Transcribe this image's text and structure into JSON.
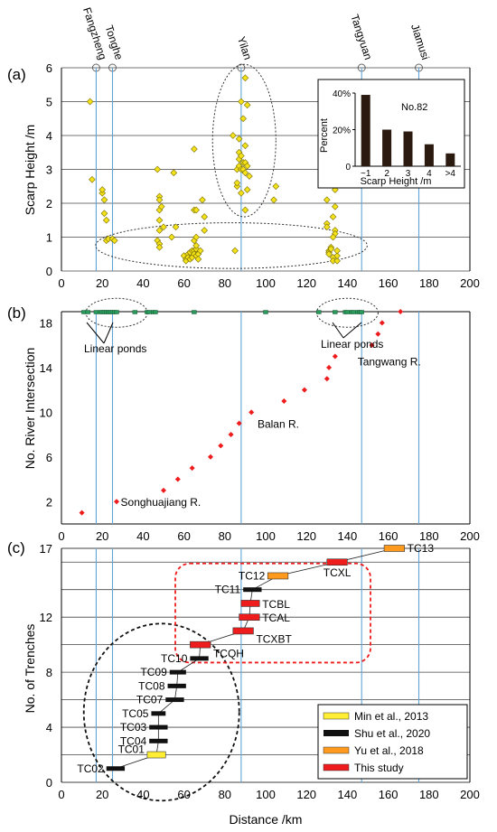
{
  "top_labels": [
    {
      "text": "Fangzheng",
      "x": 17
    },
    {
      "text": "Tonghe",
      "x": 25
    },
    {
      "text": "Yilan",
      "x": 88
    },
    {
      "text": "Tangyuan",
      "x": 147
    },
    {
      "text": "Jiamusi",
      "x": 175
    }
  ],
  "panel_a": {
    "label": "(a)",
    "ylabel": "Scarp Height /m",
    "xlim": [
      0,
      200
    ],
    "ylim": [
      0,
      6
    ],
    "xticks": [
      0,
      20,
      40,
      60,
      80,
      100,
      120,
      140,
      160,
      180,
      200
    ],
    "yticks": [
      0,
      1,
      2,
      3,
      4,
      5,
      6
    ],
    "points": [
      [
        14,
        5
      ],
      [
        15,
        2.7
      ],
      [
        20,
        2.3
      ],
      [
        20,
        2.4
      ],
      [
        21,
        2.1
      ],
      [
        21,
        1.7
      ],
      [
        22,
        1.5
      ],
      [
        22,
        0.9
      ],
      [
        23,
        0.95
      ],
      [
        25,
        0.95
      ],
      [
        26,
        0.9
      ],
      [
        47,
        3
      ],
      [
        48,
        2.2
      ],
      [
        48,
        2.1
      ],
      [
        48,
        1.8
      ],
      [
        48,
        1.5
      ],
      [
        48,
        1.2
      ],
      [
        49,
        1.9
      ],
      [
        47,
        0.9
      ],
      [
        48,
        0.8
      ],
      [
        48,
        0.7
      ],
      [
        50,
        1.3
      ],
      [
        54,
        1
      ],
      [
        55,
        2.9
      ],
      [
        56,
        1.3
      ],
      [
        60,
        0.45
      ],
      [
        61,
        0.35
      ],
      [
        61,
        0.3
      ],
      [
        62,
        0.5
      ],
      [
        62,
        0.4
      ],
      [
        63,
        0.55
      ],
      [
        63,
        0.35
      ],
      [
        64,
        0.6
      ],
      [
        64,
        0.4
      ],
      [
        65,
        0.9
      ],
      [
        65,
        0.6
      ],
      [
        65,
        0.5
      ],
      [
        66,
        0.65
      ],
      [
        66,
        1
      ],
      [
        66,
        0.45
      ],
      [
        66,
        0.75
      ],
      [
        67,
        0.5
      ],
      [
        67,
        0.35
      ],
      [
        68,
        0.6
      ],
      [
        65,
        3.6
      ],
      [
        65,
        1.8
      ],
      [
        66,
        1.8
      ],
      [
        69,
        2.1
      ],
      [
        70,
        1.6
      ],
      [
        70,
        1.2
      ],
      [
        84,
        4
      ],
      [
        85,
        0.6
      ],
      [
        86,
        2.5
      ],
      [
        86,
        2.6
      ],
      [
        86,
        3
      ],
      [
        87,
        3.3
      ],
      [
        87,
        3.1
      ],
      [
        87,
        3.5
      ],
      [
        87,
        3.9
      ],
      [
        88,
        3.4
      ],
      [
        88,
        2.3
      ],
      [
        88,
        3
      ],
      [
        88,
        5
      ],
      [
        89,
        3.2
      ],
      [
        89,
        4.5
      ],
      [
        89,
        3.0
      ],
      [
        90,
        5.7
      ],
      [
        90,
        3.2
      ],
      [
        90,
        3.7
      ],
      [
        90,
        2.9
      ],
      [
        90,
        1.8
      ],
      [
        91,
        4.9
      ],
      [
        91,
        3.1
      ],
      [
        91,
        2.4
      ],
      [
        92,
        2.8
      ],
      [
        105,
        2.5
      ],
      [
        104,
        2.1
      ],
      [
        130,
        2.1
      ],
      [
        130,
        1.4
      ],
      [
        130,
        1.3
      ],
      [
        131,
        0.6
      ],
      [
        131,
        0.55
      ],
      [
        131,
        0.5
      ],
      [
        132,
        0.7
      ],
      [
        132,
        0.65
      ],
      [
        133,
        1.6
      ],
      [
        133,
        0.4
      ],
      [
        133,
        0.3
      ],
      [
        134,
        2.4
      ],
      [
        134,
        1.9
      ],
      [
        134,
        1.2
      ],
      [
        134,
        1.1
      ],
      [
        135,
        0.3
      ],
      [
        135,
        0.45
      ],
      [
        135,
        0.6
      ],
      [
        133,
        1.0
      ]
    ],
    "inset": {
      "title": "No.82",
      "ylabel": "Percent",
      "xlabel": "Scarp Height /m",
      "categories": [
        "~1",
        "2",
        "3",
        "4",
        ">4"
      ],
      "values": [
        39,
        20,
        19,
        12,
        7
      ],
      "yticks_text": [
        "0",
        "20%",
        "40%"
      ],
      "ymax": 40
    }
  },
  "panel_b": {
    "label": "(b)",
    "ylabel": "No. River Intersection",
    "xlim": [
      0,
      200
    ],
    "ylim": [
      0,
      19
    ],
    "xticks": [
      0,
      20,
      40,
      60,
      80,
      100,
      120,
      140,
      160,
      180,
      200
    ],
    "yticks": [
      2,
      6,
      10,
      14,
      18
    ],
    "river_points": [
      [
        10,
        1
      ],
      [
        27,
        2
      ],
      [
        50,
        3
      ],
      [
        57,
        4
      ],
      [
        64,
        5
      ],
      [
        73,
        6
      ],
      [
        78,
        7
      ],
      [
        83,
        8
      ],
      [
        87,
        9
      ],
      [
        93,
        10
      ],
      [
        109,
        11
      ],
      [
        119,
        12
      ],
      [
        130,
        13
      ],
      [
        131,
        14
      ],
      [
        134,
        15
      ],
      [
        152,
        16
      ],
      [
        155,
        17
      ],
      [
        157,
        18
      ],
      [
        166,
        19
      ]
    ],
    "ponds": [
      11,
      13,
      17,
      19,
      20,
      21,
      22,
      23,
      24,
      25,
      26,
      27,
      36,
      42,
      43,
      45,
      46,
      65,
      100,
      126,
      134,
      139,
      140,
      142,
      143,
      145,
      146,
      147
    ],
    "pond_labels": [
      "Linear ponds",
      "Linear ponds"
    ],
    "river_labels": [
      {
        "text": "Songhuajiang R.",
        "x": 29,
        "y": 1.6
      },
      {
        "text": "Balan R.",
        "x": 96,
        "y": 8.6
      },
      {
        "text": "Tangwang R.",
        "x": 145,
        "y": 14.2
      }
    ]
  },
  "panel_c": {
    "label": "(c)",
    "ylabel": "No. of Trenches",
    "xlabel": "Distance /km",
    "xlim": [
      0,
      200
    ],
    "ylim": [
      0,
      17
    ],
    "xticks": [
      0,
      20,
      40,
      60,
      80,
      100,
      120,
      140,
      160,
      180,
      200
    ],
    "yticks": [
      0,
      4,
      8,
      12,
      17
    ],
    "trenches": [
      {
        "name": "TC02",
        "n": 1,
        "x": [
          22,
          31
        ],
        "source": "shu"
      },
      {
        "name": "TC01",
        "n": 2,
        "x": [
          42,
          51
        ],
        "source": "min"
      },
      {
        "name": "TC04",
        "n": 3,
        "x": [
          43,
          52
        ],
        "source": "shu"
      },
      {
        "name": "TC03",
        "n": 4,
        "x": [
          43,
          52
        ],
        "source": "shu"
      },
      {
        "name": "TC05",
        "n": 5,
        "x": [
          44,
          51
        ],
        "source": "shu"
      },
      {
        "name": "TC07",
        "n": 6,
        "x": [
          51,
          60
        ],
        "source": "shu"
      },
      {
        "name": "TC08",
        "n": 7,
        "x": [
          52,
          61
        ],
        "source": "shu"
      },
      {
        "name": "TC09",
        "n": 8,
        "x": [
          53,
          61
        ],
        "source": "shu"
      },
      {
        "name": "TC10",
        "n": 9,
        "x": [
          63,
          72
        ],
        "source": "shu"
      },
      {
        "name": "TCQH",
        "n": 10,
        "x": [
          63,
          73
        ],
        "source": "this"
      },
      {
        "name": "TCXBT",
        "n": 11,
        "x": [
          84,
          94
        ],
        "source": "this"
      },
      {
        "name": "TCAL",
        "n": 12,
        "x": [
          87,
          97
        ],
        "source": "this"
      },
      {
        "name": "TCBL",
        "n": 13,
        "x": [
          88,
          97
        ],
        "source": "this"
      },
      {
        "name": "TC11",
        "n": 14,
        "x": [
          89,
          98
        ],
        "source": "shu"
      },
      {
        "name": "TC12",
        "n": 15,
        "x": [
          101,
          111
        ],
        "source": "yu"
      },
      {
        "name": "TCXL",
        "n": 16,
        "x": [
          130,
          140
        ],
        "source": "this"
      },
      {
        "name": "TC13",
        "n": 17,
        "x": [
          158,
          168
        ],
        "source": "yu"
      }
    ],
    "legend": [
      {
        "key": "min",
        "label": "Min et al., 2013",
        "color": "#ffee33"
      },
      {
        "key": "shu",
        "label": "Shu et al., 2020",
        "color": "#111111"
      },
      {
        "key": "yu",
        "label": "Yu et al., 2018",
        "color": "#ff9a1f"
      },
      {
        "key": "this",
        "label": "This study",
        "color": "#ee1c1c"
      }
    ]
  },
  "colors": {
    "vline": "#5fa4d8",
    "scarp": "#f3e21a",
    "pond": "#2a9a5a",
    "river": "#ee1c1c"
  }
}
